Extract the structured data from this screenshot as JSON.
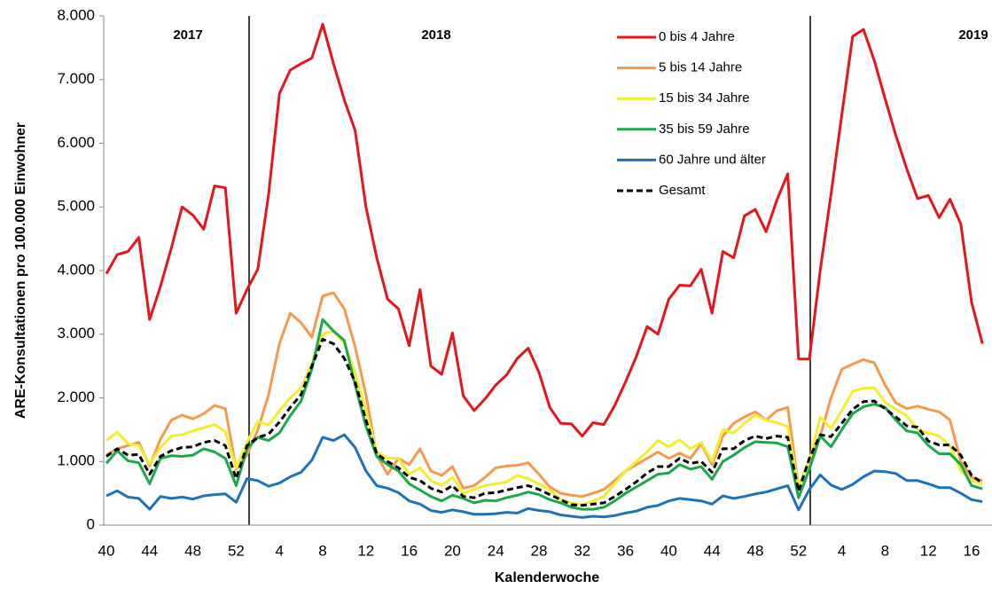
{
  "chart_data": {
    "type": "line",
    "y_label": "ARE-Konsultationen pro 100.000 Einwohner",
    "x_label": "Kalenderwoche",
    "year_labels": [
      "2017",
      "2018",
      "2019"
    ],
    "categories": [
      "40",
      null,
      null,
      null,
      "44",
      null,
      null,
      null,
      "48",
      null,
      null,
      null,
      "52",
      null,
      null,
      null,
      "4",
      null,
      null,
      null,
      "8",
      null,
      null,
      null,
      "12",
      null,
      null,
      null,
      "16",
      null,
      null,
      null,
      "20",
      null,
      null,
      null,
      "24",
      null,
      null,
      null,
      "28",
      null,
      null,
      null,
      "32",
      null,
      null,
      null,
      "36",
      null,
      null,
      null,
      "40",
      null,
      null,
      null,
      "44",
      null,
      null,
      null,
      "48",
      null,
      null,
      null,
      "52",
      null,
      null,
      null,
      "4",
      null,
      null,
      null,
      "8",
      null,
      null,
      null,
      "12",
      null,
      null,
      null,
      "16",
      null
    ],
    "ylim": [
      0,
      8000
    ],
    "yticks": [
      0,
      {
        "value": 1000,
        "label": "1.000"
      },
      {
        "value": 2000,
        "label": "2.000"
      },
      {
        "value": 3000,
        "label": "3.000"
      },
      {
        "value": 4000,
        "label": "4.000"
      },
      {
        "value": 5000,
        "label": "5.000"
      },
      {
        "value": 6000,
        "label": "6.000"
      },
      {
        "value": 7000,
        "label": "7.000"
      },
      {
        "value": 8000,
        "label": "8.000"
      }
    ],
    "legend": "top-right",
    "series": [
      {
        "name": "0 bis 4 Jahre",
        "color": "#e8141b",
        "values": [
          3950,
          4250,
          4300,
          4520,
          3230,
          3750,
          4350,
          5000,
          4870,
          4650,
          5330,
          5300,
          3330,
          3700,
          4020,
          5200,
          6780,
          7150,
          7250,
          7340,
          7870,
          7250,
          6680,
          6200,
          5000,
          4200,
          3550,
          3400,
          2820,
          3700,
          2500,
          2370,
          3020,
          2030,
          1800,
          1980,
          2200,
          2360,
          2620,
          2780,
          2400,
          1850,
          1600,
          1590,
          1400,
          1610,
          1580,
          1880,
          2250,
          2650,
          3120,
          3000,
          3550,
          3770,
          3760,
          4020,
          3330,
          4300,
          4200,
          4860,
          4960,
          4610,
          5110,
          5520,
          2610,
          2610,
          4000,
          5200,
          6450,
          7680,
          7790,
          7300,
          6700,
          6120,
          5600,
          5130,
          5180,
          4830,
          5120,
          4730,
          3500,
          2850
        ]
      },
      {
        "name": "5 bis 14 Jahre",
        "color": "#f39a4c",
        "values": [
          1100,
          1200,
          1250,
          1300,
          930,
          1350,
          1650,
          1730,
          1670,
          1750,
          1880,
          1830,
          880,
          1100,
          1500,
          2050,
          2850,
          3330,
          3180,
          2950,
          3600,
          3650,
          3400,
          2800,
          2050,
          1100,
          800,
          1050,
          950,
          1200,
          850,
          780,
          920,
          580,
          620,
          750,
          900,
          930,
          940,
          980,
          800,
          600,
          500,
          470,
          450,
          500,
          560,
          700,
          850,
          950,
          1050,
          1150,
          1050,
          1130,
          1050,
          1280,
          950,
          1400,
          1600,
          1700,
          1780,
          1650,
          1800,
          1850,
          600,
          1020,
          1400,
          2000,
          2450,
          2530,
          2600,
          2550,
          2200,
          1920,
          1830,
          1870,
          1820,
          1780,
          1650,
          1000,
          750,
          700
        ]
      },
      {
        "name": "15 bis 34 Jahre",
        "color": "#f2ee2e",
        "values": [
          1330,
          1460,
          1280,
          1250,
          960,
          1220,
          1400,
          1420,
          1480,
          1530,
          1580,
          1470,
          900,
          1300,
          1630,
          1570,
          1800,
          2000,
          2150,
          2550,
          3000,
          3050,
          2850,
          2400,
          1800,
          1150,
          1050,
          1050,
          800,
          900,
          700,
          620,
          750,
          500,
          560,
          620,
          650,
          680,
          780,
          730,
          650,
          550,
          400,
          350,
          320,
          380,
          450,
          650,
          850,
          1000,
          1150,
          1330,
          1230,
          1340,
          1200,
          1300,
          1000,
          1500,
          1450,
          1600,
          1730,
          1650,
          1610,
          1550,
          600,
          1000,
          1700,
          1520,
          1800,
          2100,
          2150,
          2160,
          1930,
          1820,
          1720,
          1500,
          1450,
          1400,
          1250,
          850,
          700,
          650
        ]
      },
      {
        "name": "35 bis 59 Jahre",
        "color": "#1aa84a",
        "values": [
          970,
          1170,
          1010,
          980,
          650,
          1050,
          1090,
          1080,
          1100,
          1200,
          1150,
          1050,
          620,
          1200,
          1380,
          1330,
          1450,
          1720,
          1950,
          2450,
          3230,
          3050,
          2900,
          2200,
          1550,
          1080,
          950,
          850,
          650,
          550,
          450,
          380,
          470,
          420,
          350,
          390,
          380,
          430,
          470,
          520,
          480,
          400,
          350,
          280,
          250,
          250,
          280,
          380,
          500,
          600,
          700,
          800,
          820,
          950,
          880,
          920,
          720,
          1000,
          1100,
          1220,
          1310,
          1300,
          1290,
          1230,
          430,
          880,
          1400,
          1230,
          1500,
          1750,
          1860,
          1900,
          1850,
          1650,
          1480,
          1450,
          1250,
          1120,
          1120,
          950,
          620,
          570
        ]
      },
      {
        "name": "60 Jahre und älter",
        "color": "#1f72b8",
        "values": [
          460,
          540,
          440,
          420,
          250,
          450,
          420,
          440,
          410,
          460,
          480,
          490,
          360,
          730,
          700,
          610,
          660,
          760,
          830,
          1020,
          1380,
          1330,
          1420,
          1220,
          850,
          620,
          580,
          510,
          380,
          330,
          230,
          200,
          240,
          210,
          170,
          170,
          180,
          200,
          190,
          260,
          230,
          210,
          160,
          140,
          120,
          140,
          130,
          150,
          190,
          220,
          280,
          310,
          380,
          420,
          400,
          380,
          330,
          460,
          420,
          450,
          490,
          520,
          570,
          620,
          240,
          560,
          790,
          630,
          560,
          640,
          760,
          850,
          840,
          810,
          700,
          700,
          650,
          590,
          590,
          500,
          400,
          370
        ]
      },
      {
        "name": "Gesamt",
        "color": "#000000",
        "style": "dashed",
        "values": [
          1080,
          1200,
          1100,
          1110,
          800,
          1080,
          1170,
          1220,
          1230,
          1300,
          1330,
          1250,
          730,
          1250,
          1380,
          1430,
          1620,
          1850,
          2050,
          2500,
          2920,
          2850,
          2620,
          2250,
          1650,
          1120,
          1000,
          900,
          750,
          700,
          580,
          520,
          620,
          450,
          430,
          500,
          510,
          550,
          590,
          620,
          560,
          480,
          400,
          320,
          310,
          330,
          350,
          450,
          560,
          680,
          820,
          920,
          920,
          1050,
          970,
          1000,
          830,
          1200,
          1200,
          1330,
          1400,
          1360,
          1400,
          1380,
          530,
          1050,
          1420,
          1390,
          1600,
          1820,
          1940,
          1950,
          1830,
          1700,
          1560,
          1540,
          1320,
          1260,
          1260,
          1100,
          780,
          660
        ]
      }
    ]
  }
}
